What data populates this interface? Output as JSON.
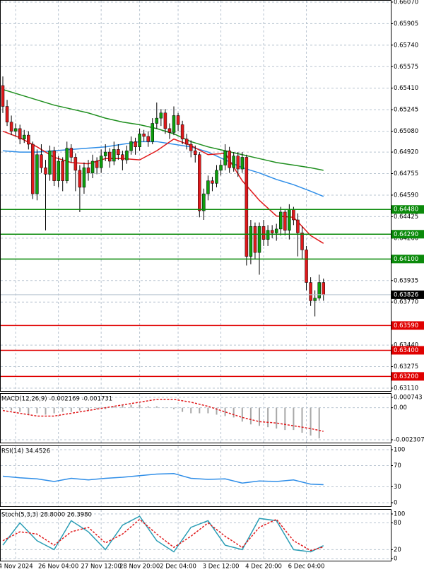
{
  "chart_data": {
    "type": "candlestick",
    "ylim": [
      0.63088,
      0.66086
    ],
    "yticks": [
      {
        "value": 0.6607,
        "label": "0.66070"
      },
      {
        "value": 0.65905,
        "label": "0.65905"
      },
      {
        "value": 0.6574,
        "label": "0.65740"
      },
      {
        "value": 0.65575,
        "label": "0.65575"
      },
      {
        "value": 0.6541,
        "label": "0.65410"
      },
      {
        "value": 0.65245,
        "label": "0.65245"
      },
      {
        "value": 0.6508,
        "label": "0.65080"
      },
      {
        "value": 0.6492,
        "label": "0.64920"
      },
      {
        "value": 0.64755,
        "label": "0.64755"
      },
      {
        "value": 0.6459,
        "label": "0.64590"
      },
      {
        "value": 0.64425,
        "label": "0.64425"
      },
      {
        "value": 0.6426,
        "label": "0.64260"
      },
      {
        "value": 0.63935,
        "label": "0.63935"
      },
      {
        "value": 0.6377,
        "label": "0.63770"
      },
      {
        "value": 0.6344,
        "label": "0.63440"
      },
      {
        "value": 0.63275,
        "label": "0.63275"
      },
      {
        "value": 0.6311,
        "label": "0.63110"
      }
    ],
    "up_color": "#0d9e0d",
    "down_color": "#e0191b",
    "candles": [
      [
        0.6543,
        0.655,
        0.6522,
        0.6527
      ],
      [
        0.6527,
        0.6532,
        0.6512,
        0.6515
      ],
      [
        0.6515,
        0.652,
        0.6505,
        0.6508
      ],
      [
        0.6508,
        0.6514,
        0.6504,
        0.651
      ],
      [
        0.651,
        0.6513,
        0.6498,
        0.6502
      ],
      [
        0.6502,
        0.6509,
        0.6499,
        0.6505
      ],
      [
        0.6505,
        0.6508,
        0.6494,
        0.6498
      ],
      [
        0.6498,
        0.65,
        0.6456,
        0.646
      ],
      [
        0.646,
        0.6494,
        0.6455,
        0.649
      ],
      [
        0.649,
        0.6498,
        0.6476,
        0.648
      ],
      [
        0.648,
        0.6486,
        0.6432,
        0.6475
      ],
      [
        0.6475,
        0.6497,
        0.647,
        0.6493
      ],
      [
        0.6493,
        0.6496,
        0.6466,
        0.647
      ],
      [
        0.647,
        0.6489,
        0.6465,
        0.6485
      ],
      [
        0.6485,
        0.6488,
        0.6462,
        0.647
      ],
      [
        0.647,
        0.65,
        0.6468,
        0.6495
      ],
      [
        0.6495,
        0.6498,
        0.6484,
        0.6488
      ],
      [
        0.6488,
        0.6491,
        0.6462,
        0.6478
      ],
      [
        0.6478,
        0.6482,
        0.6446,
        0.6465
      ],
      [
        0.6465,
        0.6484,
        0.646,
        0.648
      ],
      [
        0.648,
        0.6486,
        0.647,
        0.6476
      ],
      [
        0.6476,
        0.649,
        0.6472,
        0.6485
      ],
      [
        0.6485,
        0.6488,
        0.6475,
        0.648
      ],
      [
        0.648,
        0.6494,
        0.6476,
        0.6489
      ],
      [
        0.6489,
        0.6498,
        0.6485,
        0.6492
      ],
      [
        0.6492,
        0.6495,
        0.648,
        0.6485
      ],
      [
        0.6485,
        0.65,
        0.6482,
        0.6494
      ],
      [
        0.6494,
        0.6498,
        0.6486,
        0.649
      ],
      [
        0.649,
        0.6493,
        0.6478,
        0.6486
      ],
      [
        0.6486,
        0.6497,
        0.6483,
        0.6493
      ],
      [
        0.6493,
        0.6504,
        0.649,
        0.65
      ],
      [
        0.65,
        0.6503,
        0.649,
        0.6496
      ],
      [
        0.6496,
        0.651,
        0.6493,
        0.6506
      ],
      [
        0.6506,
        0.6509,
        0.65,
        0.6504
      ],
      [
        0.6504,
        0.6508,
        0.6496,
        0.65
      ],
      [
        0.65,
        0.6518,
        0.6498,
        0.6514
      ],
      [
        0.6514,
        0.653,
        0.651,
        0.6518
      ],
      [
        0.6518,
        0.6525,
        0.6512,
        0.6522
      ],
      [
        0.6522,
        0.6525,
        0.6506,
        0.651
      ],
      [
        0.651,
        0.6514,
        0.6502,
        0.6507
      ],
      [
        0.6507,
        0.6527,
        0.6505,
        0.652
      ],
      [
        0.652,
        0.6522,
        0.6508,
        0.6513
      ],
      [
        0.6513,
        0.6516,
        0.6498,
        0.6502
      ],
      [
        0.6502,
        0.6506,
        0.6494,
        0.6498
      ],
      [
        0.6498,
        0.6501,
        0.6488,
        0.6493
      ],
      [
        0.6493,
        0.6497,
        0.6484,
        0.649
      ],
      [
        0.649,
        0.6492,
        0.6442,
        0.6447
      ],
      [
        0.6447,
        0.6464,
        0.644,
        0.646
      ],
      [
        0.646,
        0.6474,
        0.6455,
        0.647
      ],
      [
        0.647,
        0.6473,
        0.6462,
        0.6468
      ],
      [
        0.6468,
        0.6482,
        0.6465,
        0.6478
      ],
      [
        0.6478,
        0.6486,
        0.6474,
        0.6482
      ],
      [
        0.6482,
        0.6498,
        0.6478,
        0.6493
      ],
      [
        0.6493,
        0.6496,
        0.6476,
        0.648
      ],
      [
        0.648,
        0.6492,
        0.6477,
        0.6489
      ],
      [
        0.6489,
        0.6492,
        0.6473,
        0.6479
      ],
      [
        0.6479,
        0.6492,
        0.6476,
        0.6488
      ],
      [
        0.6488,
        0.649,
        0.6405,
        0.6412
      ],
      [
        0.6412,
        0.644,
        0.6406,
        0.6435
      ],
      [
        0.6435,
        0.6438,
        0.641,
        0.6415
      ],
      [
        0.6415,
        0.6438,
        0.6398,
        0.6435
      ],
      [
        0.6435,
        0.644,
        0.642,
        0.6425
      ],
      [
        0.6425,
        0.6436,
        0.642,
        0.6432
      ],
      [
        0.6432,
        0.6436,
        0.6426,
        0.643
      ],
      [
        0.643,
        0.6437,
        0.6424,
        0.6433
      ],
      [
        0.6433,
        0.645,
        0.6428,
        0.6446
      ],
      [
        0.6446,
        0.6448,
        0.6428,
        0.6432
      ],
      [
        0.6432,
        0.6452,
        0.6425,
        0.6448
      ],
      [
        0.6448,
        0.645,
        0.6436,
        0.644
      ],
      [
        0.644,
        0.6445,
        0.6412,
        0.643
      ],
      [
        0.643,
        0.6435,
        0.641,
        0.6417
      ],
      [
        0.6417,
        0.642,
        0.6386,
        0.6392
      ],
      [
        0.6392,
        0.6396,
        0.6374,
        0.6378
      ],
      [
        0.6378,
        0.6386,
        0.6366,
        0.638
      ],
      [
        0.638,
        0.6398,
        0.6378,
        0.6392
      ],
      [
        0.6392,
        0.6395,
        0.6378,
        0.63826
      ]
    ],
    "ma_x": [
      0,
      4,
      8,
      12,
      16,
      20,
      24,
      28,
      32,
      36,
      40,
      44,
      48,
      52,
      56,
      60,
      64,
      68,
      72,
      75
    ],
    "moving_averages": [
      {
        "color": "#1f8f1f",
        "values": [
          0.654,
          0.6536,
          0.6532,
          0.6528,
          0.6525,
          0.6522,
          0.6518,
          0.6515,
          0.6513,
          0.651,
          0.6506,
          0.65,
          0.6496,
          0.6493,
          0.649,
          0.6487,
          0.6484,
          0.6482,
          0.648,
          0.6478
        ]
      },
      {
        "color": "#2f8ee8",
        "values": [
          0.6493,
          0.6492,
          0.6492,
          0.6493,
          0.6494,
          0.6495,
          0.6496,
          0.6498,
          0.65,
          0.65,
          0.6498,
          0.6496,
          0.6492,
          0.6486,
          0.648,
          0.6476,
          0.6471,
          0.6467,
          0.6462,
          0.6458
        ]
      },
      {
        "color": "#e0191b",
        "values": [
          0.6508,
          0.6503,
          0.6496,
          0.6488,
          0.6484,
          0.6483,
          0.6487,
          0.6487,
          0.6486,
          0.6493,
          0.6502,
          0.6497,
          0.649,
          0.6491,
          0.647,
          0.6455,
          0.6443,
          0.6442,
          0.6428,
          0.6422
        ]
      }
    ],
    "levels": [
      {
        "value": 0.6448,
        "label": "0.64480",
        "color": "#0a8a0a"
      },
      {
        "value": 0.6429,
        "label": "0.64290",
        "color": "#0a8a0a"
      },
      {
        "value": 0.641,
        "label": "0.64100",
        "color": "#0a8a0a"
      },
      {
        "value": 0.6359,
        "label": "0.63590",
        "color": "#e00000"
      },
      {
        "value": 0.634,
        "label": "0.63400",
        "color": "#e00000"
      },
      {
        "value": 0.632,
        "label": "0.63200",
        "color": "#e00000"
      }
    ],
    "last_price": {
      "value": 0.63826,
      "label": "0.63826"
    },
    "time_labels": [
      {
        "value": 3,
        "label": "4 Nov 2024"
      },
      {
        "value": 13,
        "label": "26 Nov 04:00"
      },
      {
        "value": 23,
        "label": "27 Nov 12:00"
      },
      {
        "value": 32,
        "label": "28 Nov 20:00"
      },
      {
        "value": 41,
        "label": "2 Dec 04:00"
      },
      {
        "value": 51,
        "label": "3 Dec 12:00"
      },
      {
        "value": 61,
        "label": "4 Dec 20:00"
      },
      {
        "value": 71,
        "label": "6 Dec 04:00"
      }
    ],
    "macd": {
      "type": "macd",
      "title": "MACD(12,26,9) -0.002169 -0.001731",
      "ylim": [
        -0.00251,
        0.00105
      ],
      "yticks": [
        {
          "value": 0.000743,
          "label": "0.000743"
        },
        {
          "value": 0,
          "label": "0.00"
        },
        {
          "value": -0.002307,
          "label": "-0.002307"
        }
      ],
      "histogram": {
        "color": "#a8a8a8",
        "x": [
          0,
          2,
          4,
          6,
          8,
          10,
          12,
          14,
          16,
          18,
          20,
          22,
          24,
          26,
          28,
          30,
          32,
          34,
          36,
          38,
          40,
          42,
          44,
          46,
          48,
          50,
          52,
          54,
          56,
          58,
          60,
          62,
          64,
          66,
          68,
          70,
          72,
          74
        ],
        "values": [
          -0.0001,
          -0.0002,
          -0.0003,
          -0.0005,
          -0.0004,
          -0.0005,
          -0.0004,
          -0.0003,
          -0.0003,
          -0.0002,
          -0.0002,
          -0.0001,
          -0.0001,
          0.0001,
          0.0002,
          0.0002,
          0.0002,
          0.0001,
          0.0001,
          0.0,
          -0.0001,
          -0.0003,
          -0.0004,
          -0.0004,
          -0.0004,
          -0.0005,
          -0.0006,
          -0.0007,
          -0.001,
          -0.0012,
          -0.0013,
          -0.0014,
          -0.0015,
          -0.0016,
          -0.0016,
          -0.0018,
          -0.002,
          -0.0022
        ]
      },
      "signal": {
        "color": "#e0191b",
        "values": [
          -0.0002,
          -0.0004,
          -0.0006,
          -0.0006,
          -0.0004,
          -0.0002,
          0.0,
          0.0002,
          0.0004,
          0.0006,
          0.0006,
          0.0004,
          0.0001,
          -0.0003,
          -0.0007,
          -0.001,
          -0.0011,
          -0.0013,
          -0.0015,
          -0.0017
        ]
      }
    },
    "rsi": {
      "type": "rsi",
      "title": "RSI(14) 34.4526",
      "ylim": [
        -6.7,
        108
      ],
      "yticks": [
        100,
        70,
        30,
        0
      ],
      "levels": [
        70,
        30
      ],
      "line": {
        "color": "#2f8ee8",
        "values": [
          50,
          47,
          45,
          40,
          46,
          43,
          46,
          48,
          51,
          54,
          55,
          46,
          44,
          45,
          37,
          41,
          40,
          43,
          35,
          34
        ]
      }
    },
    "stoch": {
      "type": "stoch",
      "title": "Stoch(5,3,3) 28.8000 26.3980",
      "ylim": [
        -4.8,
        111
      ],
      "yticks": [
        100,
        80,
        20,
        0
      ],
      "levels": [
        80,
        20
      ],
      "main": {
        "color": "#2a9db5",
        "values": [
          30,
          80,
          40,
          20,
          85,
          60,
          20,
          75,
          95,
          40,
          15,
          70,
          85,
          30,
          20,
          90,
          85,
          20,
          15,
          29
        ]
      },
      "signal": {
        "color": "#e0191b",
        "values": [
          40,
          60,
          55,
          30,
          60,
          70,
          35,
          55,
          88,
          55,
          25,
          50,
          80,
          50,
          25,
          70,
          88,
          40,
          18,
          26
        ]
      }
    }
  }
}
